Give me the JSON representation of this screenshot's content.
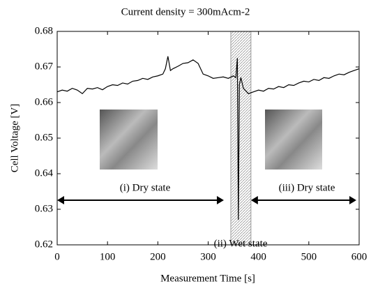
{
  "chart_data": {
    "type": "line",
    "title": "Current density = 300mAcm-2",
    "x_label": "Measurement Time [s]",
    "y_label": "Cell Voltage [V]",
    "annotations": [
      "(i) Dry state",
      "(ii) Wet state",
      "(iii) Dry state"
    ],
    "x": [
      0,
      10,
      20,
      30,
      40,
      50,
      60,
      70,
      80,
      90,
      100,
      110,
      120,
      130,
      140,
      150,
      160,
      170,
      180,
      190,
      200,
      210,
      215,
      220,
      225,
      230,
      240,
      250,
      260,
      270,
      280,
      290,
      300,
      310,
      320,
      330,
      340,
      350,
      355,
      358,
      360,
      362,
      365,
      370,
      380,
      390,
      400,
      410,
      420,
      430,
      440,
      450,
      460,
      470,
      480,
      490,
      500,
      510,
      520,
      530,
      540,
      550,
      560,
      570,
      580,
      590,
      600
    ],
    "values": [
      0.663,
      0.6635,
      0.6632,
      0.664,
      0.6635,
      0.6625,
      0.664,
      0.6638,
      0.6642,
      0.6636,
      0.6645,
      0.665,
      0.6648,
      0.6655,
      0.6652,
      0.666,
      0.6662,
      0.6668,
      0.6665,
      0.6672,
      0.6675,
      0.668,
      0.6695,
      0.673,
      0.669,
      0.6695,
      0.6702,
      0.671,
      0.6712,
      0.672,
      0.671,
      0.668,
      0.6675,
      0.6668,
      0.667,
      0.6672,
      0.6668,
      0.6675,
      0.667,
      0.6725,
      0.627,
      0.665,
      0.667,
      0.664,
      0.6625,
      0.663,
      0.6635,
      0.6632,
      0.664,
      0.6638,
      0.6645,
      0.6642,
      0.665,
      0.6648,
      0.6655,
      0.666,
      0.6658,
      0.6665,
      0.6662,
      0.667,
      0.6668,
      0.6675,
      0.668,
      0.6678,
      0.6685,
      0.669,
      0.6695
    ],
    "color": "#000000",
    "wet_region": [
      345,
      385
    ],
    "xlim": [
      0,
      600
    ],
    "xticks": [
      0,
      100,
      200,
      300,
      400,
      500,
      600
    ],
    "ylim": [
      0.62,
      0.68
    ],
    "yticks": [
      0.62,
      0.63,
      0.64,
      0.65,
      0.66,
      0.67,
      0.68
    ],
    "grid": false
  }
}
